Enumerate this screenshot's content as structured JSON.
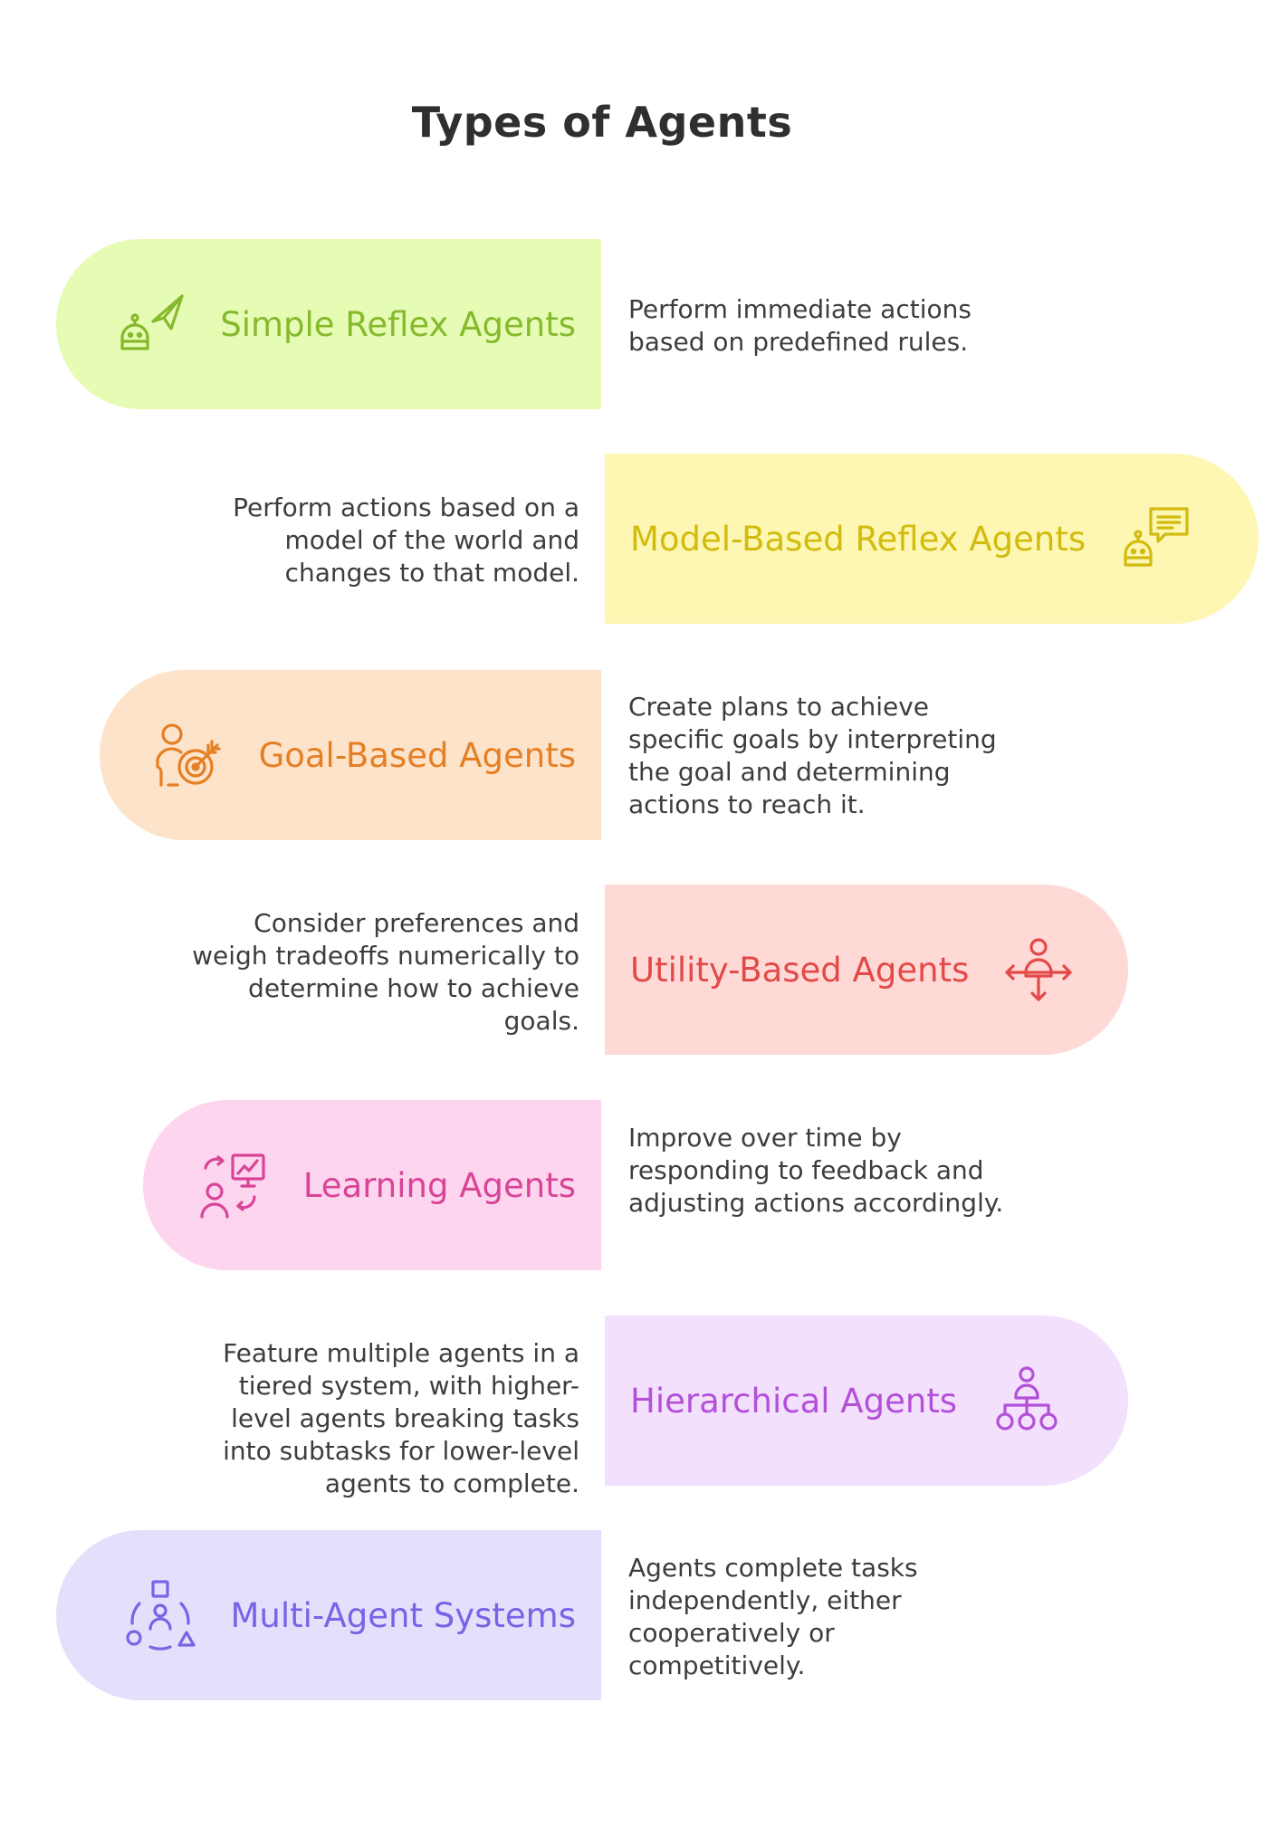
{
  "title": "Types of Agents",
  "items": [
    {
      "name": "Simple Reflex Agents",
      "description": "Perform immediate actions based on predefined rules.",
      "icon": "robot-send-icon",
      "fill": "#e6fcb5",
      "color": "#86b92c"
    },
    {
      "name": "Model-Based Reflex Agents",
      "description": "Perform actions based on a model of the world and changes to that model.",
      "icon": "robot-chat-icon",
      "fill": "#fdf7b3",
      "color": "#d2bb0e"
    },
    {
      "name": "Goal-Based Agents",
      "description": "Create plans to achieve specific goals by interpreting the goal and determining actions to reach it.",
      "icon": "person-target-icon",
      "fill": "#fee3cb",
      "color": "#e57f24"
    },
    {
      "name": "Utility-Based Agents",
      "description": "Consider preferences and weigh tradeoffs numerically to determine how to achieve goals.",
      "icon": "person-arrows-icon",
      "fill": "#fed9d6",
      "color": "#e24a49"
    },
    {
      "name": "Learning Agents",
      "description": "Improve over time by responding to feedback and adjusting actions accordingly.",
      "icon": "learning-board-icon",
      "fill": "#fed5ee",
      "color": "#d84497"
    },
    {
      "name": "Hierarchical Agents",
      "description": "Feature multiple agents in a tiered system, with higher-level agents breaking tasks into subtasks for lower-level agents to complete.",
      "icon": "hierarchy-icon",
      "fill": "#f3e0fd",
      "color": "#b350d8"
    },
    {
      "name": "Multi-Agent Systems",
      "description": "Agents complete tasks independently, either cooperatively or competitively.",
      "icon": "multi-agent-icon",
      "fill": "#e4e0fc",
      "color": "#7b62e6"
    }
  ]
}
